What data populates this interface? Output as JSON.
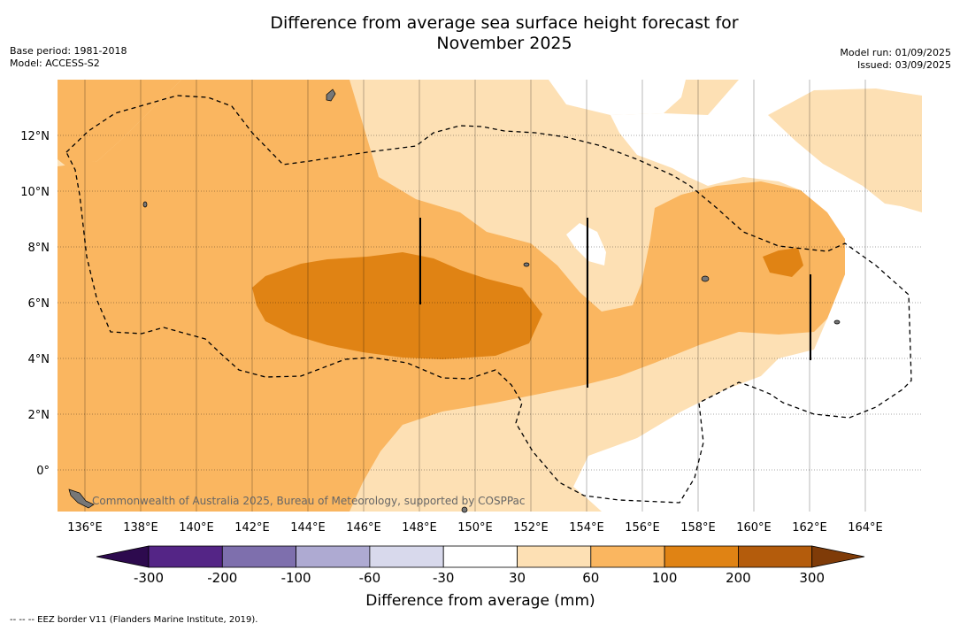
{
  "title_line1": "Difference from average sea surface height forecast for",
  "title_line2": "November 2025",
  "meta_left": {
    "base_period": "Base period: 1981-2018",
    "model": "Model: ACCESS-S2"
  },
  "meta_right": {
    "model_run": "Model run: 01/09/2025",
    "issued": "Issued: 03/09/2025"
  },
  "map": {
    "lon_ticks": [
      "136°E",
      "138°E",
      "140°E",
      "142°E",
      "144°E",
      "146°E",
      "148°E",
      "150°E",
      "152°E",
      "154°E",
      "156°E",
      "158°E",
      "160°E",
      "162°E",
      "164°E"
    ],
    "lat_ticks": [
      "12°N",
      "10°N",
      "8°N",
      "6°N",
      "4°N",
      "2°N",
      "0°"
    ],
    "credit": "Commonwealth of Australia 2025, Bureau of Meteorology, supported by COSPPac"
  },
  "colorbar": {
    "labels": [
      "-300",
      "-200",
      "-100",
      "-60",
      "-30",
      "30",
      "60",
      "100",
      "200",
      "300"
    ],
    "title": "Difference from average (mm)",
    "colors": {
      "below_min": "#2d0a4e",
      "c1": "#542586",
      "c2": "#7e6fad",
      "c3": "#aeaad2",
      "c4": "#d8d9ec",
      "c5": "#ffffff",
      "c6": "#fde0b4",
      "c7": "#fab660",
      "c8": "#e08314",
      "c9": "#b45c0c",
      "above_max": "#7f3b08"
    }
  },
  "footer": "--  --  -- EEZ border V11 (Flanders Marine Institute, 2019)."
}
